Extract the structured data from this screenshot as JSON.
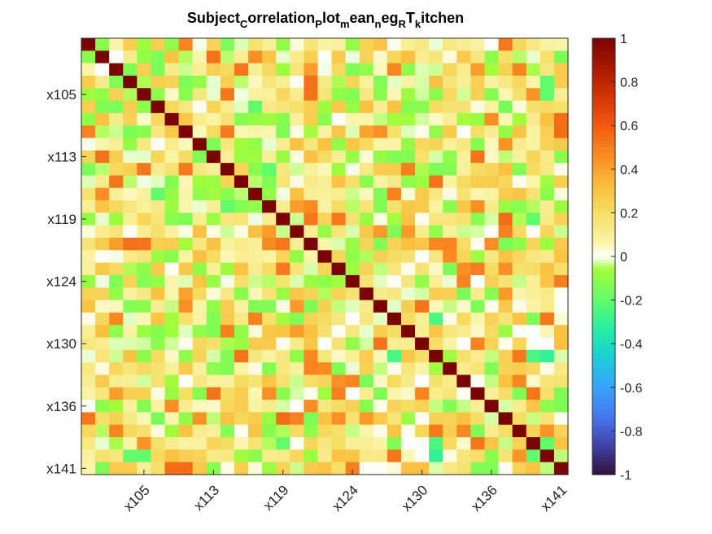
{
  "chart_data": {
    "type": "heatmap",
    "title_parts": [
      {
        "t": "Subject",
        "sub": false
      },
      {
        "t": "C",
        "sub": true
      },
      {
        "t": "orrelation",
        "sub": false
      },
      {
        "t": "P",
        "sub": true
      },
      {
        "t": "lot",
        "sub": false
      },
      {
        "t": "m",
        "sub": true
      },
      {
        "t": "ean",
        "sub": false
      },
      {
        "t": "n",
        "sub": true
      },
      {
        "t": "eg",
        "sub": false
      },
      {
        "t": "R",
        "sub": true
      },
      {
        "t": "T",
        "sub": false
      },
      {
        "t": "k",
        "sub": true
      },
      {
        "t": "itchen",
        "sub": false
      }
    ],
    "n": 35,
    "first_subject": 101,
    "tick_labels": [
      "x105",
      "x113",
      "x119",
      "x124",
      "x130",
      "x136",
      "x141"
    ],
    "tick_indices": [
      4,
      9,
      14,
      19,
      24,
      29,
      34
    ],
    "clim": [
      -1,
      1
    ],
    "colorbar_ticks": [
      1,
      0.8,
      0.6,
      0.4,
      0.2,
      0,
      -0.2,
      -0.4,
      -0.6,
      -0.8,
      -1
    ],
    "colormap": "turbo",
    "diagonal_value": 1,
    "strong_cells": [
      {
        "r": 14,
        "c": 30,
        "v": 0.55
      },
      {
        "r": 6,
        "c": 34,
        "v": 0.55
      },
      {
        "r": 19,
        "c": 34,
        "v": 0.5
      },
      {
        "r": 28,
        "c": 18,
        "v": 0.5
      },
      {
        "r": 27,
        "c": 18,
        "v": 0.45
      },
      {
        "r": 34,
        "c": 7,
        "v": 0.55
      },
      {
        "r": 28,
        "c": 13,
        "v": 0.45
      },
      {
        "r": 20,
        "c": 7,
        "v": 0.4
      },
      {
        "r": 7,
        "c": 21,
        "v": 0.45
      },
      {
        "r": 18,
        "c": 30,
        "v": 0.45
      },
      {
        "r": 4,
        "c": 33,
        "v": -0.2
      },
      {
        "r": 11,
        "c": 11,
        "v": 1
      },
      {
        "r": 10,
        "c": 13,
        "v": -0.2
      },
      {
        "r": 5,
        "c": 12,
        "v": -0.2
      },
      {
        "r": 22,
        "c": 25,
        "v": -0.25
      },
      {
        "r": 25,
        "c": 33,
        "v": -0.3
      },
      {
        "r": 32,
        "c": 14,
        "v": -0.2
      },
      {
        "r": 32,
        "c": 25,
        "v": -0.25
      },
      {
        "r": 33,
        "c": 3,
        "v": -0.2
      },
      {
        "r": 33,
        "c": 32,
        "v": -0.2
      }
    ]
  }
}
